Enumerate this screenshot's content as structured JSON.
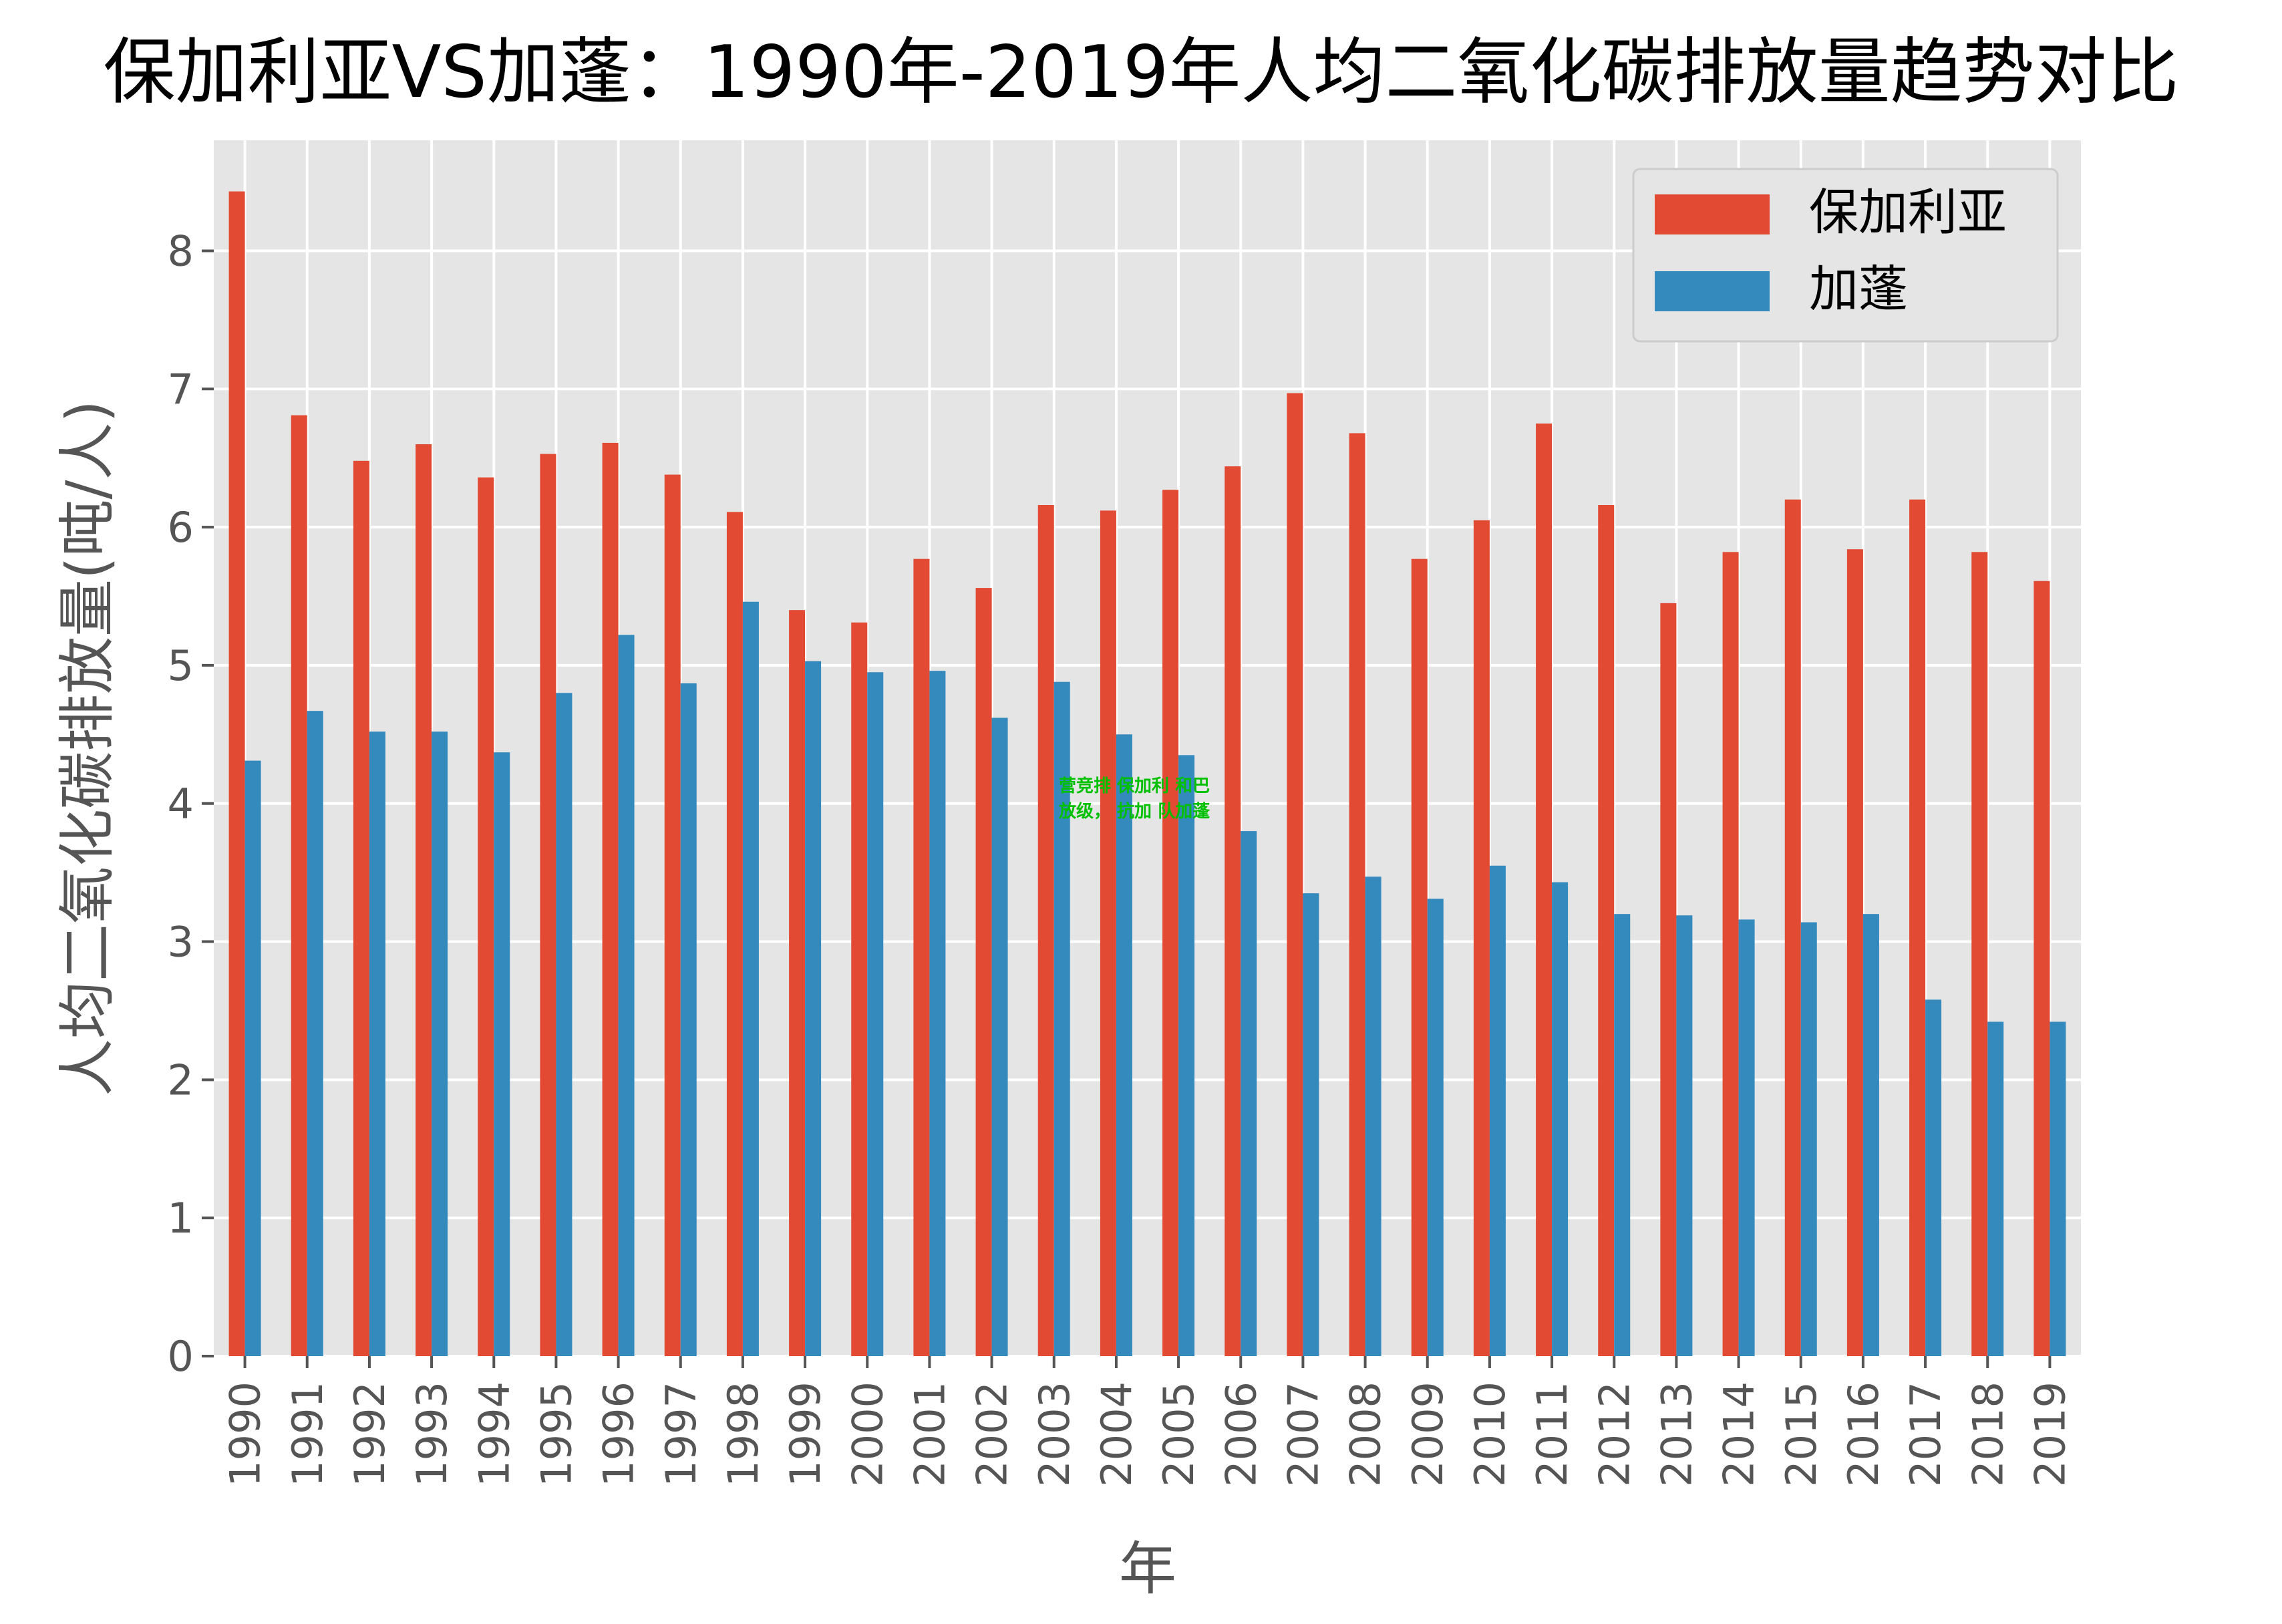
{
  "chart_data": {
    "type": "bar",
    "title": "保加利亚VS加蓬：1990年-2019年人均二氧化碳排放量趋势对比",
    "xlabel": "年",
    "ylabel": "人均二氧化碳排放量(吨/人)",
    "ylim": [
      0,
      8.8
    ],
    "yticks": [
      0,
      1,
      2,
      3,
      4,
      5,
      6,
      7,
      8
    ],
    "grid": true,
    "legend_position": "top-right",
    "categories": [
      "1990",
      "1991",
      "1992",
      "1993",
      "1994",
      "1995",
      "1996",
      "1997",
      "1998",
      "1999",
      "2000",
      "2001",
      "2002",
      "2003",
      "2004",
      "2005",
      "2006",
      "2007",
      "2008",
      "2009",
      "2010",
      "2011",
      "2012",
      "2013",
      "2014",
      "2015",
      "2016",
      "2017",
      "2018",
      "2019"
    ],
    "series": [
      {
        "name": "保加利亚",
        "color": "#E24A33",
        "values": [
          8.43,
          6.81,
          6.48,
          6.6,
          6.36,
          6.53,
          6.61,
          6.38,
          6.11,
          5.4,
          5.31,
          5.77,
          5.56,
          6.16,
          6.12,
          6.27,
          6.44,
          6.97,
          6.68,
          5.77,
          6.05,
          6.75,
          6.16,
          5.45,
          5.82,
          6.2,
          5.84,
          6.2,
          5.82,
          5.61
        ]
      },
      {
        "name": "加蓬",
        "color": "#348ABD",
        "values": [
          4.31,
          4.67,
          4.52,
          4.52,
          4.37,
          4.8,
          5.22,
          4.87,
          5.46,
          5.03,
          4.95,
          4.96,
          4.62,
          4.88,
          4.5,
          4.35,
          3.8,
          3.35,
          3.47,
          3.31,
          3.55,
          3.43,
          3.2,
          3.19,
          3.16,
          3.14,
          3.2,
          2.58,
          2.42,
          2.42
        ]
      }
    ],
    "annotation": {
      "lines": [
        "营竞排 保加利 和巴",
        "放级，  抗加 队加蓬"
      ],
      "color": "#00c000"
    }
  }
}
